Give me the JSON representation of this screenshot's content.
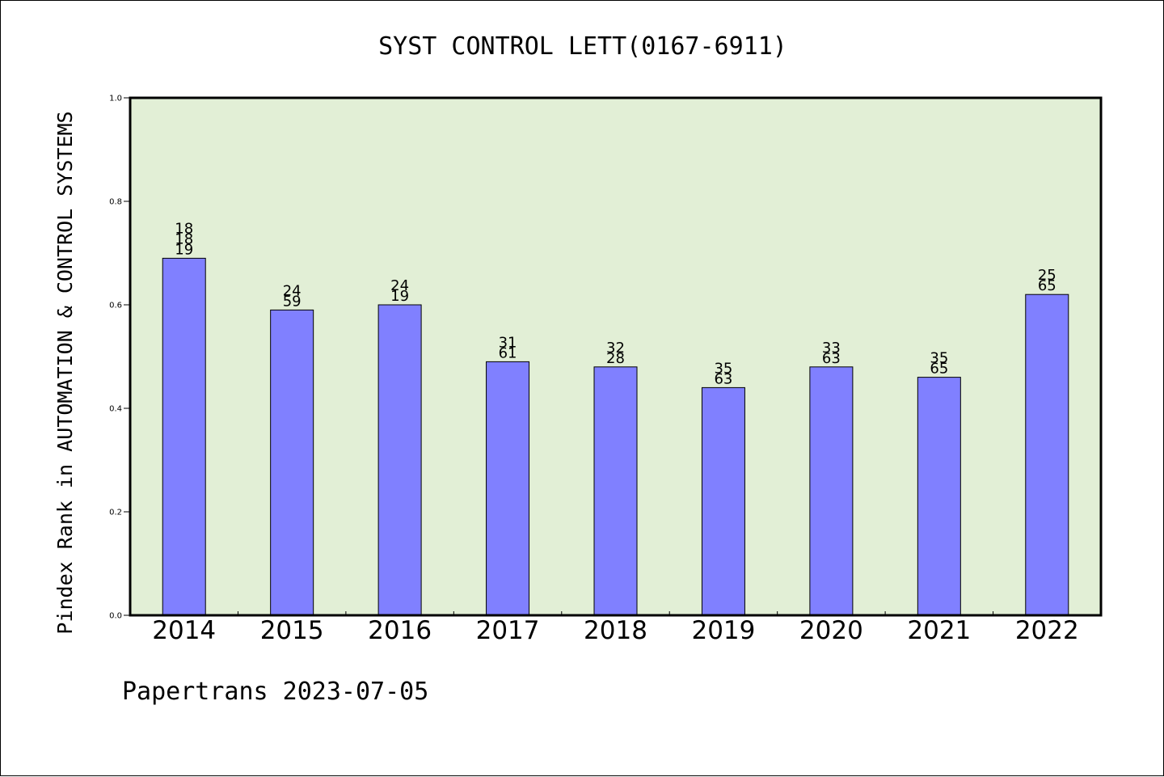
{
  "title": "SYST CONTROL LETT(0167-6911)",
  "footer": "Papertrans 2023-07-05",
  "colors": {
    "plot_background": "#e2efd6",
    "bar_fill": "#8080ff",
    "axis": "#000000"
  },
  "chart_data": {
    "type": "bar",
    "title": "SYST CONTROL LETT(0167-6911)",
    "xlabel": "",
    "ylabel": "Pindex Rank in AUTOMATION & CONTROL SYSTEMS",
    "ylim": [
      0,
      1.0
    ],
    "yticks": [
      "0.0",
      "0.2",
      "0.4",
      "0.6",
      "0.8",
      "1.0"
    ],
    "grid": false,
    "categories": [
      "2014",
      "2015",
      "2016",
      "2017",
      "2018",
      "2019",
      "2020",
      "2021",
      "2022"
    ],
    "values": [
      0.69,
      0.59,
      0.6,
      0.49,
      0.48,
      0.44,
      0.48,
      0.46,
      0.62
    ],
    "annotations": [
      [
        "18",
        "18",
        "19"
      ],
      [
        "24",
        "59"
      ],
      [
        "24",
        "19"
      ],
      [
        "31",
        "61"
      ],
      [
        "32",
        "28"
      ],
      [
        "35",
        "63"
      ],
      [
        "33",
        "63"
      ],
      [
        "35",
        "65"
      ],
      [
        "25",
        "65"
      ]
    ]
  }
}
